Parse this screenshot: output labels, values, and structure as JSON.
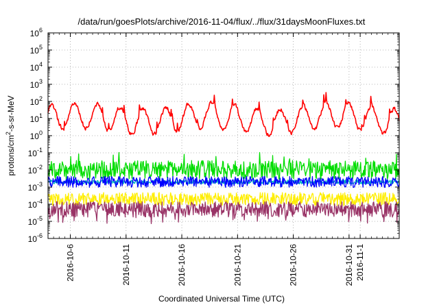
{
  "chart_data": {
    "type": "line",
    "title": "/data/run/goesPlots/archive/2016-11-04/flux/../flux/31daysMoonFluxes.txt",
    "xlabel": "Coordinated Universal Time (UTC)",
    "ylabel": {
      "pre": "protons/cm",
      "sup": "2",
      "post": "-s-sr-MeV"
    },
    "yscale": "log",
    "ylim": [
      1e-06,
      1000000.0
    ],
    "grid": true,
    "yticks": [
      {
        "exp": "-6"
      },
      {
        "exp": "-5"
      },
      {
        "exp": "-4"
      },
      {
        "exp": "-3"
      },
      {
        "exp": "-2"
      },
      {
        "exp": "-1"
      },
      {
        "exp": "0"
      },
      {
        "exp": "1"
      },
      {
        "exp": "2"
      },
      {
        "exp": "3"
      },
      {
        "exp": "4"
      },
      {
        "exp": "5"
      },
      {
        "exp": "6"
      }
    ],
    "xdomain_days": [
      0,
      31.5
    ],
    "xdomain_start": "2016-10-04",
    "xticks": [
      {
        "label": "2016-10-6",
        "day": 2
      },
      {
        "label": "2016-10-11",
        "day": 7
      },
      {
        "label": "2016-10-16",
        "day": 12
      },
      {
        "label": "2016-10-21",
        "day": 17
      },
      {
        "label": "2016-10-26",
        "day": 22
      },
      {
        "label": "2016-10-31",
        "day": 27
      },
      {
        "label": "2016-11-1",
        "day": 28
      }
    ],
    "series": [
      {
        "name": "red",
        "color": "#ff0000",
        "approx_level": 10
      },
      {
        "name": "green",
        "color": "#00dd00",
        "approx_level": 0.01
      },
      {
        "name": "cyan",
        "color": "#00bbbb",
        "approx_level": 0.002
      },
      {
        "name": "blue",
        "color": "#0000ff",
        "approx_level": 0.002
      },
      {
        "name": "yellow",
        "color": "#ffee00",
        "approx_level": 0.0002
      },
      {
        "name": "purple",
        "color": "#993366",
        "approx_level": 5e-05
      }
    ]
  }
}
